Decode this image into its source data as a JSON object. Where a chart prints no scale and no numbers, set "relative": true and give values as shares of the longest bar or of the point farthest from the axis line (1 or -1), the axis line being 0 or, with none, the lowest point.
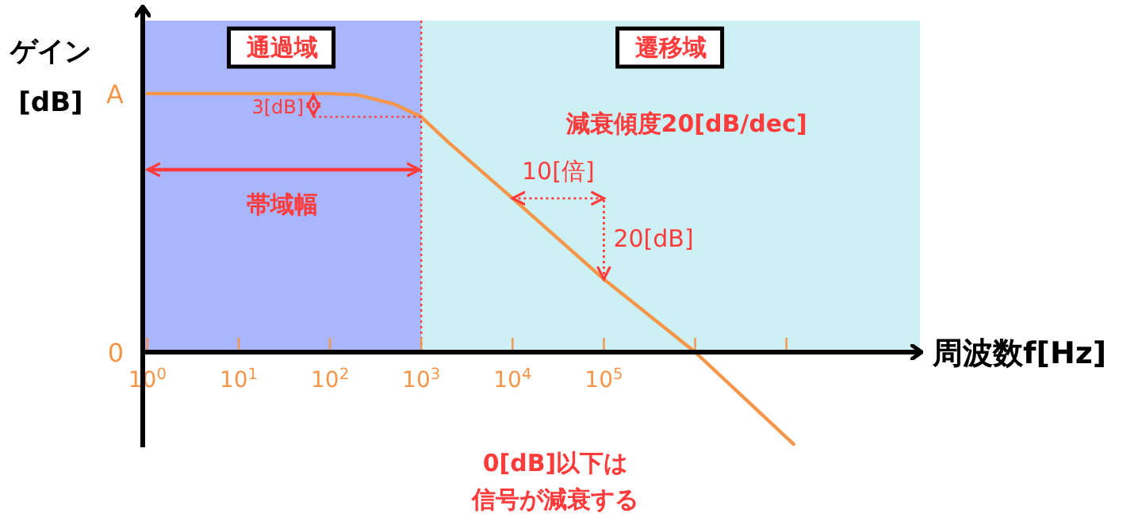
{
  "chart_data": {
    "type": "line",
    "xlabel": "周波数f[Hz]",
    "ylabel": "ゲイン\n[dB]",
    "log": "x",
    "relative": true,
    "x": [
      1,
      100,
      200,
      500,
      1000,
      2000,
      10000,
      100000,
      1000000,
      12000000
    ],
    "series": [
      {
        "color": "#f5964a",
        "values": [
          1,
          1,
          0.995,
          0.96,
          0.91,
          0.81,
          0.595,
          0.282,
          0,
          -0.356
        ]
      }
    ],
    "xlim": [
      0.89,
      290000000
    ],
    "xticks": [
      {
        "value": 1,
        "label": "10$^{0}$"
      },
      {
        "value": 10,
        "label": "10$^{1}$"
      },
      {
        "value": 100,
        "label": "10$^{2}$"
      },
      {
        "value": 1000,
        "label": "10$^{3}$"
      },
      {
        "value": 10000,
        "label": "10$^{4}$"
      },
      {
        "value": 100000,
        "label": "10$^{5}$"
      },
      {
        "value": 1000000,
        "label": null
      },
      {
        "value": 10000000,
        "label": null
      }
    ],
    "bands": [
      {
        "axis": "x",
        "from": 0.89,
        "to": 1000,
        "label": "通過域",
        "color": "#a9b6fb"
      },
      {
        "axis": "x",
        "from": 1000,
        "to": 290000000,
        "label": "遷移域",
        "color": "#cdf0f5"
      }
    ],
    "ref_lines": [
      {
        "axis": "x",
        "value": 1000,
        "color": "#ff3b3b",
        "line_style": "dotted"
      }
    ],
    "annotations": [
      "A",
      "0",
      "3[dB]",
      "帯域幅",
      "減衰傾度20[dB/dec]",
      "10[倍]",
      "20[dB]",
      "0[dB]以下は",
      "信号が減衰する"
    ]
  }
}
